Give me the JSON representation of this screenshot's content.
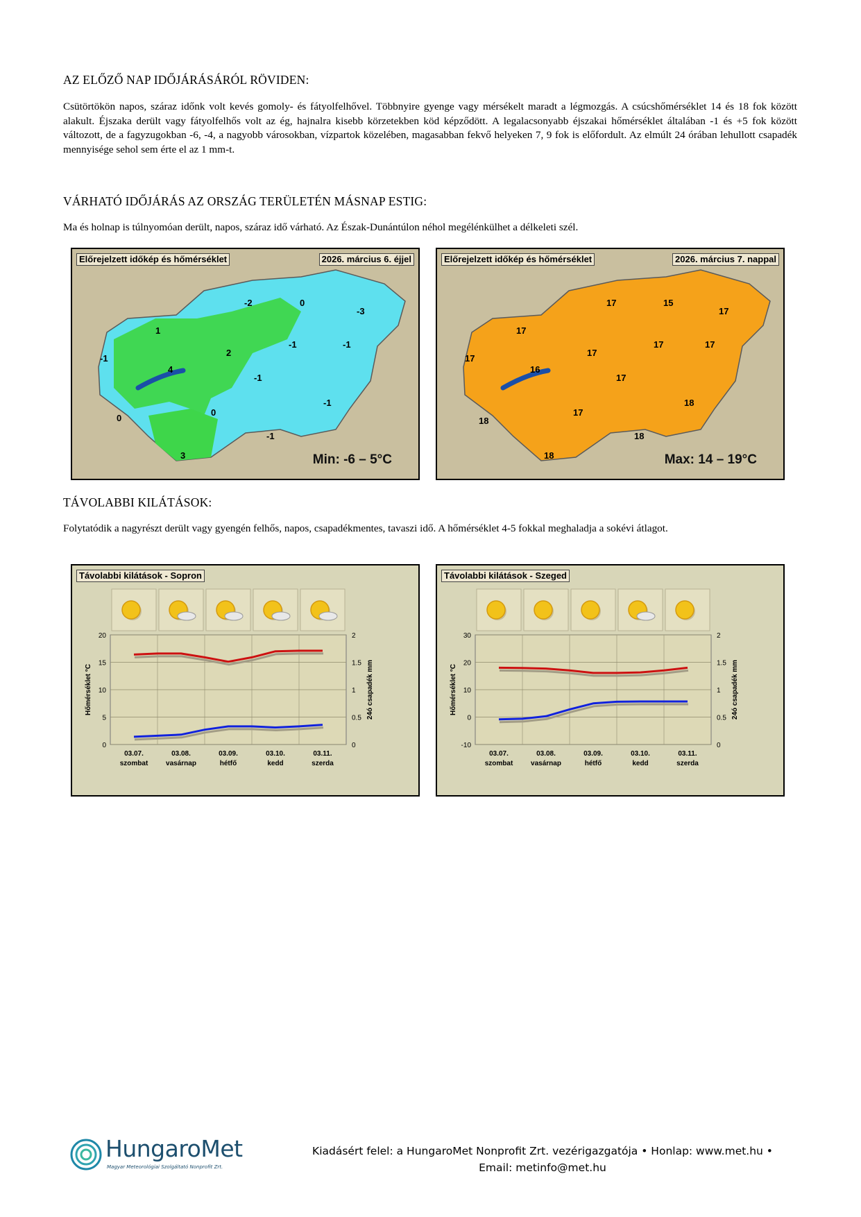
{
  "section1": {
    "heading": "AZ ELŐZŐ NAP IDŐJÁRÁSÁRÓL RÖVIDEN:",
    "text": "Csütörtökön napos, száraz időnk volt kevés gomoly- és fátyolfelhővel. Többnyire gyenge vagy mérsékelt maradt a légmozgás. A csúcshőmérséklet 14 és 18 fok között alakult. Éjszaka derült vagy fátyolfelhős volt az ég, hajnalra kisebb körzetekben köd képződött. A legalacsonyabb éjszakai hőmérséklet általában -1 és +5 fok között változott, de a fagyzugokban -6, -4, a nagyobb városokban, vízpartok közelében, magasabban fekvő helyeken 7, 9 fok is előfordult. Az elmúlt 24 órában lehullott csapadék mennyisége sehol sem érte el az 1 mm-t."
  },
  "section2": {
    "heading": "VÁRHATÓ IDŐJÁRÁS AZ ORSZÁG TERÜLETÉN MÁSNAP ESTIG:",
    "text": "Ma és holnap is túlnyomóan derült, napos, száraz idő várható. Az Észak-Dunántúlon néhol megélénkülhet a délkeleti szél."
  },
  "map_left": {
    "title": "Előrejelzett időkép és hőmérséklet",
    "date": "2026. március 6. éjjel",
    "range": "Min: -6 – 5°C",
    "temps": [
      "-2",
      "0",
      "-3",
      "1",
      "-1",
      "2",
      "-1",
      "-1",
      "4",
      "-1",
      "0",
      "0",
      "-1",
      "-1",
      "3"
    ],
    "colors": {
      "cold": "#5ee0ee",
      "warm": "#3ed64a"
    }
  },
  "map_right": {
    "title": "Előrejelzett időkép és hőmérséklet",
    "date": "2026. március 7. nappal",
    "range": "Max: 14 – 19°C",
    "temps": [
      "17",
      "15",
      "17",
      "17",
      "17",
      "17",
      "17",
      "17",
      "16",
      "17",
      "18",
      "17",
      "18",
      "18",
      "18"
    ],
    "colors": {
      "fill": "#f5a21a"
    }
  },
  "section3": {
    "heading": "TÁVOLABBI KILÁTÁSOK:",
    "text": "Folytatódik a nagyrészt derült vagy gyengén felhős, napos, csapadékmentes, tavaszi idő. A hőmérséklet 4-5 fokkal meghaladja a sokévi átlagot."
  },
  "chart_data": [
    {
      "type": "line",
      "title": "Távolabbi kilátások - Sopron",
      "categories": [
        "03.07.",
        "03.08.",
        "03.09.",
        "03.10.",
        "03.11."
      ],
      "days": [
        "szombat",
        "vasárnap",
        "hétfő",
        "kedd",
        "szerda"
      ],
      "icons": [
        "sun-icon",
        "sun-cloud-icon",
        "sun-cloud-icon",
        "sun-cloud-icon",
        "cloud-sun-icon"
      ],
      "ylabel": "Hőmérséklet °C",
      "y2label": "24ó csapadék mm",
      "ylim": [
        0,
        20
      ],
      "yticks": [
        0,
        5,
        10,
        15,
        20
      ],
      "y2ticks": [
        "0",
        "0.5",
        "1",
        "1.5",
        "2"
      ],
      "series": [
        {
          "color": "#cc1111",
          "x": [
            0,
            0.5,
            1,
            1.5,
            2,
            2.5,
            3,
            3.5,
            4
          ],
          "values": [
            16.4,
            16.6,
            16.6,
            15.9,
            15.1,
            15.9,
            17.0,
            17.1,
            17.1
          ]
        },
        {
          "color": "#1122dd",
          "x": [
            0,
            0.5,
            1,
            1.5,
            2,
            2.5,
            3,
            3.5,
            4
          ],
          "values": [
            1.4,
            1.6,
            1.8,
            2.7,
            3.3,
            3.3,
            3.1,
            3.3,
            3.6
          ]
        }
      ]
    },
    {
      "type": "line",
      "title": "Távolabbi kilátások - Szeged",
      "categories": [
        "03.07.",
        "03.08.",
        "03.09.",
        "03.10.",
        "03.11."
      ],
      "days": [
        "szombat",
        "vasárnap",
        "hétfő",
        "kedd",
        "szerda"
      ],
      "icons": [
        "sun-icon",
        "sun-icon",
        "sun-icon",
        "sun-cloud-icon",
        "sun-icon"
      ],
      "ylabel": "Hőmérséklet °C",
      "y2label": "24ó csapadék mm",
      "ylim": [
        -10,
        30
      ],
      "yticks": [
        -10,
        0,
        10,
        20,
        30
      ],
      "y2ticks": [
        "0",
        "0.5",
        "1",
        "1.5",
        "2"
      ],
      "series": [
        {
          "color": "#cc1111",
          "x": [
            0,
            0.5,
            1,
            1.5,
            2,
            2.5,
            3,
            3.5,
            4
          ],
          "values": [
            18,
            17.9,
            17.7,
            17.0,
            16.1,
            16.1,
            16.3,
            17.0,
            18.0
          ]
        },
        {
          "color": "#1122dd",
          "x": [
            0,
            0.5,
            1,
            1.5,
            2,
            2.5,
            3,
            3.5,
            4
          ],
          "values": [
            -0.8,
            -0.6,
            0.3,
            2.8,
            5.0,
            5.6,
            5.7,
            5.7,
            5.7
          ]
        }
      ]
    }
  ],
  "footer": {
    "line1": "Kiadásért felel: a HungaroMet Nonprofit Zrt. vezérigazgatója • Honlap: www.met.hu •",
    "line2": "Email: metinfo@met.hu"
  },
  "logo": {
    "name": "HungaroMet",
    "subtitle": "Magyar Meteorológiai Szolgáltató Nonprofit Zrt."
  }
}
